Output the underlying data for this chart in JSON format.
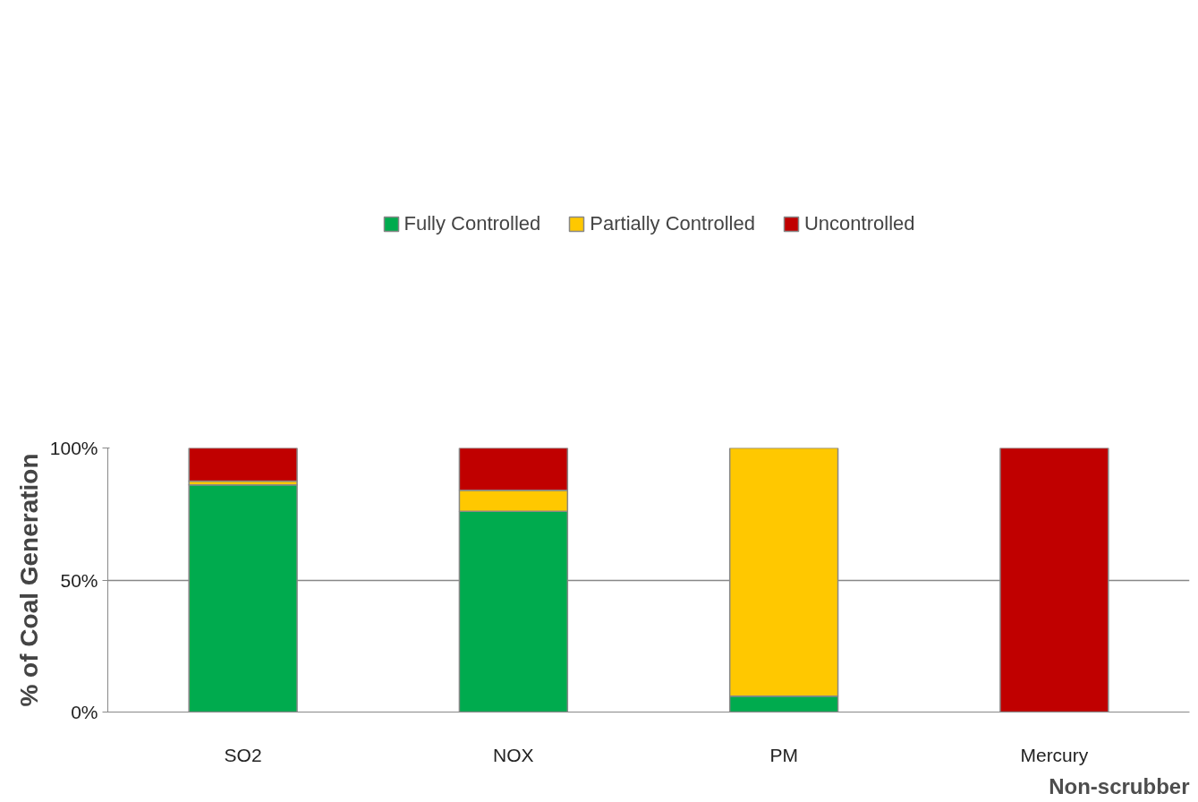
{
  "chart_data": {
    "type": "bar",
    "stacked": true,
    "ylabel": "% of Coal Generation",
    "categories": [
      "SO2",
      "NOX",
      "PM",
      "Mercury"
    ],
    "series": [
      {
        "name": "Fully Controlled",
        "color": "#00ab4e",
        "values": [
          86,
          76,
          6,
          null
        ]
      },
      {
        "name": "Partially Controlled",
        "color": "#ffc800",
        "values": [
          1.5,
          8,
          94,
          null
        ]
      },
      {
        "name": "Uncontrolled",
        "color": "#c00000",
        "values": [
          12.5,
          16,
          null,
          100
        ]
      }
    ],
    "ylim": [
      0,
      100
    ],
    "yticks": [
      {
        "value": 0,
        "label": "0%"
      },
      {
        "value": 50,
        "label": "50%"
      },
      {
        "value": 100,
        "label": "100%"
      }
    ],
    "grid": "y",
    "legend": "top",
    "annotations": [
      "Non-scrubber"
    ]
  }
}
